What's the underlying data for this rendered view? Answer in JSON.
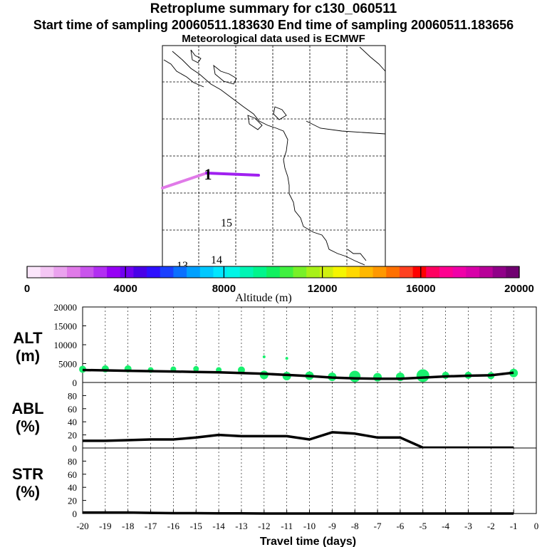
{
  "header": {
    "title": "Retroplume summary for c130_060511",
    "sampling_line": "Start time of sampling 20060511.183630     End time of sampling 20060511.183656",
    "met_line": "Meteorological data used is ECMWF"
  },
  "map": {
    "plume_label": "1",
    "contour_labels": [
      "15",
      "14",
      "13"
    ]
  },
  "colors": {
    "low_plume": "#e07ae8",
    "mid_plume": "#a020f0",
    "alt_dots": "#19f06e",
    "line": "#000000"
  },
  "chart_data": [
    {
      "type": "colorbar",
      "title": "Altitude (m)",
      "range": [
        0,
        20000
      ],
      "tick_labels": [
        "0",
        "4000",
        "8000",
        "12000",
        "16000",
        "20000"
      ],
      "colors": [
        "#fbe6fb",
        "#f4c6f4",
        "#eaa2ee",
        "#e07ae8",
        "#c954ec",
        "#b22ef2",
        "#9600f5",
        "#7000f0",
        "#4800e8",
        "#2e10ff",
        "#1a40ff",
        "#0a70ff",
        "#00a0ff",
        "#00c8ff",
        "#00e6ff",
        "#00f5e6",
        "#00f5b4",
        "#00f58c",
        "#10f060",
        "#40f040",
        "#78f028",
        "#a8f018",
        "#d0f010",
        "#f5f500",
        "#ffd800",
        "#ffb800",
        "#ff9800",
        "#ff7000",
        "#ff4020",
        "#ff0000",
        "#ff0060",
        "#ff0090",
        "#f000a8",
        "#d800a8",
        "#b80098",
        "#900088",
        "#700070"
      ]
    },
    {
      "type": "line",
      "name": "ALT",
      "ylabel": "ALT\n(m)",
      "ylabel_lines": [
        "ALT",
        "(m)"
      ],
      "ylim": [
        0,
        20000
      ],
      "ytick_labels": [
        "0",
        "5000",
        "10000",
        "15000",
        "20000"
      ],
      "x": [
        -20,
        -19,
        -18,
        -17,
        -16,
        -15,
        -14,
        -13,
        -12,
        -11,
        -10,
        -9,
        -8,
        -7,
        -6,
        -5,
        -4,
        -3,
        -2,
        -1
      ],
      "values": [
        3300,
        3200,
        3100,
        3000,
        2900,
        2800,
        2700,
        2500,
        2300,
        2000,
        1700,
        1300,
        1100,
        1000,
        1000,
        1300,
        1600,
        1800,
        1900,
        2600
      ],
      "dots": [
        {
          "x": -20,
          "y": 3500,
          "r": 5
        },
        {
          "x": -19,
          "y": 3600,
          "r": 5
        },
        {
          "x": -18,
          "y": 3600,
          "r": 5
        },
        {
          "x": -17,
          "y": 3300,
          "r": 4
        },
        {
          "x": -16,
          "y": 3500,
          "r": 4
        },
        {
          "x": -15,
          "y": 3600,
          "r": 4
        },
        {
          "x": -14,
          "y": 3300,
          "r": 4
        },
        {
          "x": -13,
          "y": 3300,
          "r": 5
        },
        {
          "x": -12,
          "y": 2000,
          "r": 6
        },
        {
          "x": -11,
          "y": 1700,
          "r": 6
        },
        {
          "x": -10,
          "y": 1800,
          "r": 6
        },
        {
          "x": -9,
          "y": 1500,
          "r": 6
        },
        {
          "x": -8,
          "y": 1600,
          "r": 8
        },
        {
          "x": -7,
          "y": 1400,
          "r": 6
        },
        {
          "x": -6,
          "y": 1500,
          "r": 6
        },
        {
          "x": -5,
          "y": 1800,
          "r": 9
        },
        {
          "x": -4,
          "y": 1900,
          "r": 5
        },
        {
          "x": -3,
          "y": 1900,
          "r": 5
        },
        {
          "x": -2,
          "y": 1800,
          "r": 5
        },
        {
          "x": -1,
          "y": 2500,
          "r": 6
        },
        {
          "x": -12,
          "y": 6800,
          "r": 2
        },
        {
          "x": -11,
          "y": 6400,
          "r": 2
        }
      ]
    },
    {
      "type": "line",
      "name": "ABL",
      "ylabel": "ABL\n(%)",
      "ylabel_lines": [
        "ABL",
        "(%)"
      ],
      "ylim": [
        0,
        100
      ],
      "ytick_labels": [
        "0",
        "20",
        "40",
        "60",
        "80"
      ],
      "x": [
        -20,
        -19,
        -18,
        -17,
        -16,
        -15,
        -14,
        -13,
        -12,
        -11,
        -10,
        -9,
        -8,
        -7,
        -6,
        -5,
        -4,
        -3,
        -2,
        -1
      ],
      "values": [
        11,
        11,
        12,
        13,
        13,
        16,
        20,
        18,
        18,
        18,
        13,
        24,
        22,
        16,
        16,
        0.5,
        0.5,
        0.5,
        0.5,
        0.5
      ]
    },
    {
      "type": "line",
      "name": "STR",
      "ylabel": "STR\n(%)",
      "ylabel_lines": [
        "STR",
        "(%)"
      ],
      "ylim": [
        0,
        100
      ],
      "ytick_labels": [
        "0",
        "20",
        "40",
        "60",
        "80"
      ],
      "x": [
        -20,
        -19,
        -18,
        -17,
        -16,
        -15,
        -14,
        -13,
        -12,
        -11,
        -10,
        -9,
        -8,
        -7,
        -6,
        -5,
        -4,
        -3,
        -2,
        -1
      ],
      "values": [
        1.5,
        1.5,
        1.5,
        1,
        0.5,
        0.5,
        0.3,
        0.3,
        0,
        0,
        0,
        0,
        0,
        0,
        0,
        0,
        0,
        0,
        0,
        0
      ],
      "xlabel": "Travel time (days)",
      "xtick_labels": [
        "-20",
        "-19",
        "-18",
        "-17",
        "-16",
        "-15",
        "-14",
        "-13",
        "-12",
        "-11",
        "-10",
        "-9",
        "-8",
        "-7",
        "-6",
        "-5",
        "-4",
        "-3",
        "-2",
        "-1",
        "0"
      ]
    }
  ]
}
